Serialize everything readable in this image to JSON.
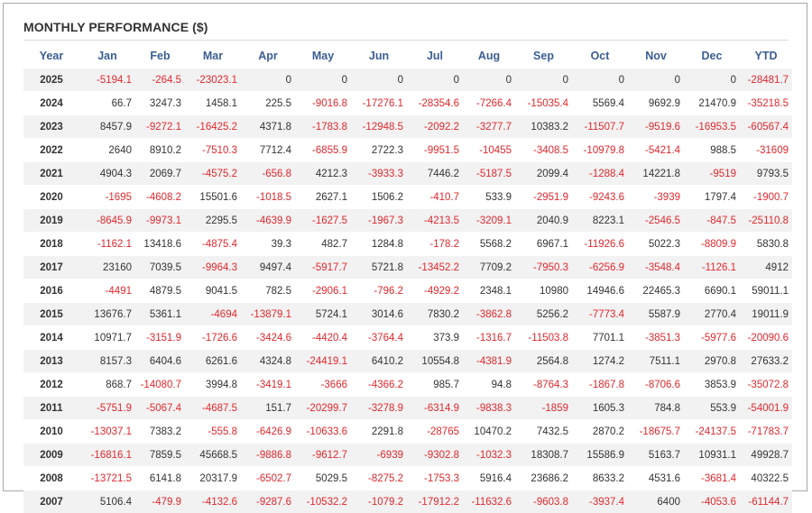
{
  "title": "MONTHLY PERFORMANCE ($)",
  "colors": {
    "negative": "#e0282e",
    "header": "#3b5e91",
    "row_alt": "#f2f2f2"
  },
  "columns": [
    "Year",
    "Jan",
    "Feb",
    "Mar",
    "Apr",
    "May",
    "Jun",
    "Jul",
    "Aug",
    "Sep",
    "Oct",
    "Nov",
    "Dec",
    "YTD"
  ],
  "rows": [
    [
      "2025",
      "-5194.1",
      "-264.5",
      "-23023.1",
      "0",
      "0",
      "0",
      "0",
      "0",
      "0",
      "0",
      "0",
      "0",
      "-28481.7"
    ],
    [
      "2024",
      "66.7",
      "3247.3",
      "1458.1",
      "225.5",
      "-9016.8",
      "-17276.1",
      "-28354.6",
      "-7266.4",
      "-15035.4",
      "5569.4",
      "9692.9",
      "21470.9",
      "-35218.5"
    ],
    [
      "2023",
      "8457.9",
      "-9272.1",
      "-16425.2",
      "4371.8",
      "-1783.8",
      "-12948.5",
      "-2092.2",
      "-3277.7",
      "10383.2",
      "-11507.7",
      "-9519.6",
      "-16953.5",
      "-60567.4"
    ],
    [
      "2022",
      "2640",
      "8910.2",
      "-7510.3",
      "7712.4",
      "-6855.9",
      "2722.3",
      "-9951.5",
      "-10455",
      "-3408.5",
      "-10979.8",
      "-5421.4",
      "988.5",
      "-31609"
    ],
    [
      "2021",
      "4904.3",
      "2069.7",
      "-4575.2",
      "-656.8",
      "4212.3",
      "-3933.3",
      "7446.2",
      "-5187.5",
      "2099.4",
      "-1288.4",
      "14221.8",
      "-9519",
      "9793.5"
    ],
    [
      "2020",
      "-1695",
      "-4608.2",
      "15501.6",
      "-1018.5",
      "2627.1",
      "1506.2",
      "-410.7",
      "533.9",
      "-2951.9",
      "-9243.6",
      "-3939",
      "1797.4",
      "-1900.7"
    ],
    [
      "2019",
      "-8645.9",
      "-9973.1",
      "2295.5",
      "-4639.9",
      "-1627.5",
      "-1967.3",
      "-4213.5",
      "-3209.1",
      "2040.9",
      "8223.1",
      "-2546.5",
      "-847.5",
      "-25110.8"
    ],
    [
      "2018",
      "-1162.1",
      "13418.6",
      "-4875.4",
      "39.3",
      "482.7",
      "1284.8",
      "-178.2",
      "5568.2",
      "6967.1",
      "-11926.6",
      "5022.3",
      "-8809.9",
      "5830.8"
    ],
    [
      "2017",
      "23160",
      "7039.5",
      "-9964.3",
      "9497.4",
      "-5917.7",
      "5721.8",
      "-13452.2",
      "7709.2",
      "-7950.3",
      "-6256.9",
      "-3548.4",
      "-1126.1",
      "4912"
    ],
    [
      "2016",
      "-4491",
      "4879.5",
      "9041.5",
      "782.5",
      "-2906.1",
      "-796.2",
      "-4929.2",
      "2348.1",
      "10980",
      "14946.6",
      "22465.3",
      "6690.1",
      "59011.1"
    ],
    [
      "2015",
      "13676.7",
      "5361.1",
      "-4694",
      "-13879.1",
      "5724.1",
      "3014.6",
      "7830.2",
      "-3862.8",
      "5256.2",
      "-7773.4",
      "5587.9",
      "2770.4",
      "19011.9"
    ],
    [
      "2014",
      "10971.7",
      "-3151.9",
      "-1726.6",
      "-3424.6",
      "-4420.4",
      "-3764.4",
      "373.9",
      "-1316.7",
      "-11503.8",
      "7701.1",
      "-3851.3",
      "-5977.6",
      "-20090.6"
    ],
    [
      "2013",
      "8157.3",
      "6404.6",
      "6261.6",
      "4324.8",
      "-24419.1",
      "6410.2",
      "10554.8",
      "-4381.9",
      "2564.8",
      "1274.2",
      "7511.1",
      "2970.8",
      "27633.2"
    ],
    [
      "2012",
      "868.7",
      "-14080.7",
      "3994.8",
      "-3419.1",
      "-3666",
      "-4366.2",
      "985.7",
      "94.8",
      "-8764.3",
      "-1867.8",
      "-8706.6",
      "3853.9",
      "-35072.8"
    ],
    [
      "2011",
      "-5751.9",
      "-5067.4",
      "-4687.5",
      "151.7",
      "-20299.7",
      "-3278.9",
      "-6314.9",
      "-9838.3",
      "-1859",
      "1605.3",
      "784.8",
      "553.9",
      "-54001.9"
    ],
    [
      "2010",
      "-13037.1",
      "7383.2",
      "-555.8",
      "-6426.9",
      "-10633.6",
      "2291.8",
      "-28765",
      "10470.2",
      "7432.5",
      "2870.2",
      "-18675.7",
      "-24137.5",
      "-71783.7"
    ],
    [
      "2009",
      "-16816.1",
      "7859.5",
      "45668.5",
      "-9886.8",
      "-9612.7",
      "-6939",
      "-9302.8",
      "-1032.3",
      "18308.7",
      "15586.9",
      "5163.7",
      "10931.1",
      "49928.7"
    ],
    [
      "2008",
      "-13721.5",
      "6141.8",
      "20317.9",
      "-6502.7",
      "5029.5",
      "-8275.2",
      "-1753.3",
      "5916.4",
      "23686.2",
      "8633.2",
      "4531.6",
      "-3681.4",
      "40322.5"
    ],
    [
      "2007",
      "5106.4",
      "-479.9",
      "-4132.6",
      "-9287.6",
      "-10532.2",
      "-1079.2",
      "-17912.2",
      "-11632.6",
      "-9603.8",
      "-3937.4",
      "6400",
      "-4053.6",
      "-61144.7"
    ]
  ]
}
